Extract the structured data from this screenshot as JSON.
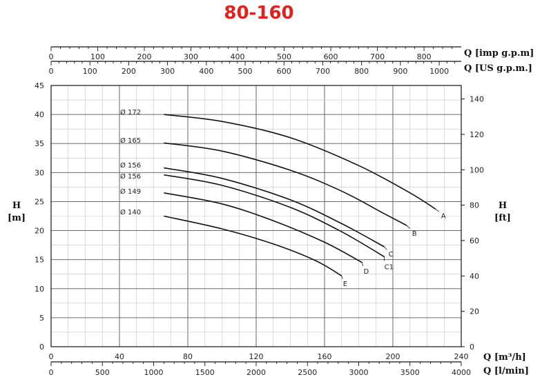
{
  "chart_data": {
    "type": "line",
    "title": "80-160",
    "x": {
      "label_main": "Q [m³/h]",
      "range": [
        0,
        240
      ],
      "ticks": [
        0,
        40,
        80,
        120,
        160,
        200,
        240
      ]
    },
    "x_secondary": [
      {
        "label": "Q [l/min]",
        "position": "bottom",
        "factor": 16.667,
        "ticks": [
          0,
          500,
          1000,
          1500,
          2000,
          2500,
          3000,
          3500,
          4000
        ]
      },
      {
        "label": "Q [US g.p.m.]",
        "position": "top",
        "factor": 4.403,
        "ticks": [
          0,
          100,
          200,
          300,
          400,
          500,
          600,
          700,
          800,
          900,
          1000
        ]
      },
      {
        "label": "Q [imp g.p.m]",
        "position": "top",
        "factor": 3.666,
        "ticks": [
          0,
          100,
          200,
          300,
          400,
          500,
          600,
          700,
          800
        ]
      }
    ],
    "y": {
      "label": "H [m]",
      "range": [
        0,
        45
      ],
      "ticks": [
        0,
        5,
        10,
        15,
        20,
        25,
        30,
        35,
        40,
        45
      ]
    },
    "y_secondary": {
      "label": "H [ft]",
      "factor": 3.2808,
      "ticks": [
        0,
        20,
        40,
        60,
        80,
        100,
        120,
        140
      ]
    },
    "grid": true,
    "series": [
      {
        "name": "A",
        "diameter": "Ø 172",
        "x": [
          66,
          100,
          140,
          180,
          210,
          225
        ],
        "y": [
          40,
          38.8,
          36,
          31.2,
          26.5,
          23.7
        ]
      },
      {
        "name": "B",
        "diameter": "Ø 165",
        "x": [
          66,
          100,
          140,
          170,
          195,
          208
        ],
        "y": [
          35.1,
          33.7,
          30.4,
          26.8,
          22.9,
          20.9
        ]
      },
      {
        "name": "C",
        "diameter": "Ø 156",
        "x": [
          66,
          100,
          140,
          170,
          195
        ],
        "y": [
          30.8,
          29,
          25.3,
          21.2,
          17.2
        ]
      },
      {
        "name": "C1",
        "diameter": "Ø 156",
        "x": [
          66,
          100,
          140,
          170,
          195
        ],
        "y": [
          29.6,
          27.8,
          24,
          19.8,
          15.5
        ]
      },
      {
        "name": "D",
        "diameter": "Ø 149",
        "x": [
          66,
          100,
          130,
          160,
          182
        ],
        "y": [
          26.5,
          24.6,
          21.7,
          18,
          14.5
        ]
      },
      {
        "name": "E",
        "diameter": "Ø 140",
        "x": [
          66,
          100,
          130,
          155,
          170
        ],
        "y": [
          22.5,
          20.3,
          17.7,
          14.8,
          12.2
        ]
      }
    ]
  }
}
